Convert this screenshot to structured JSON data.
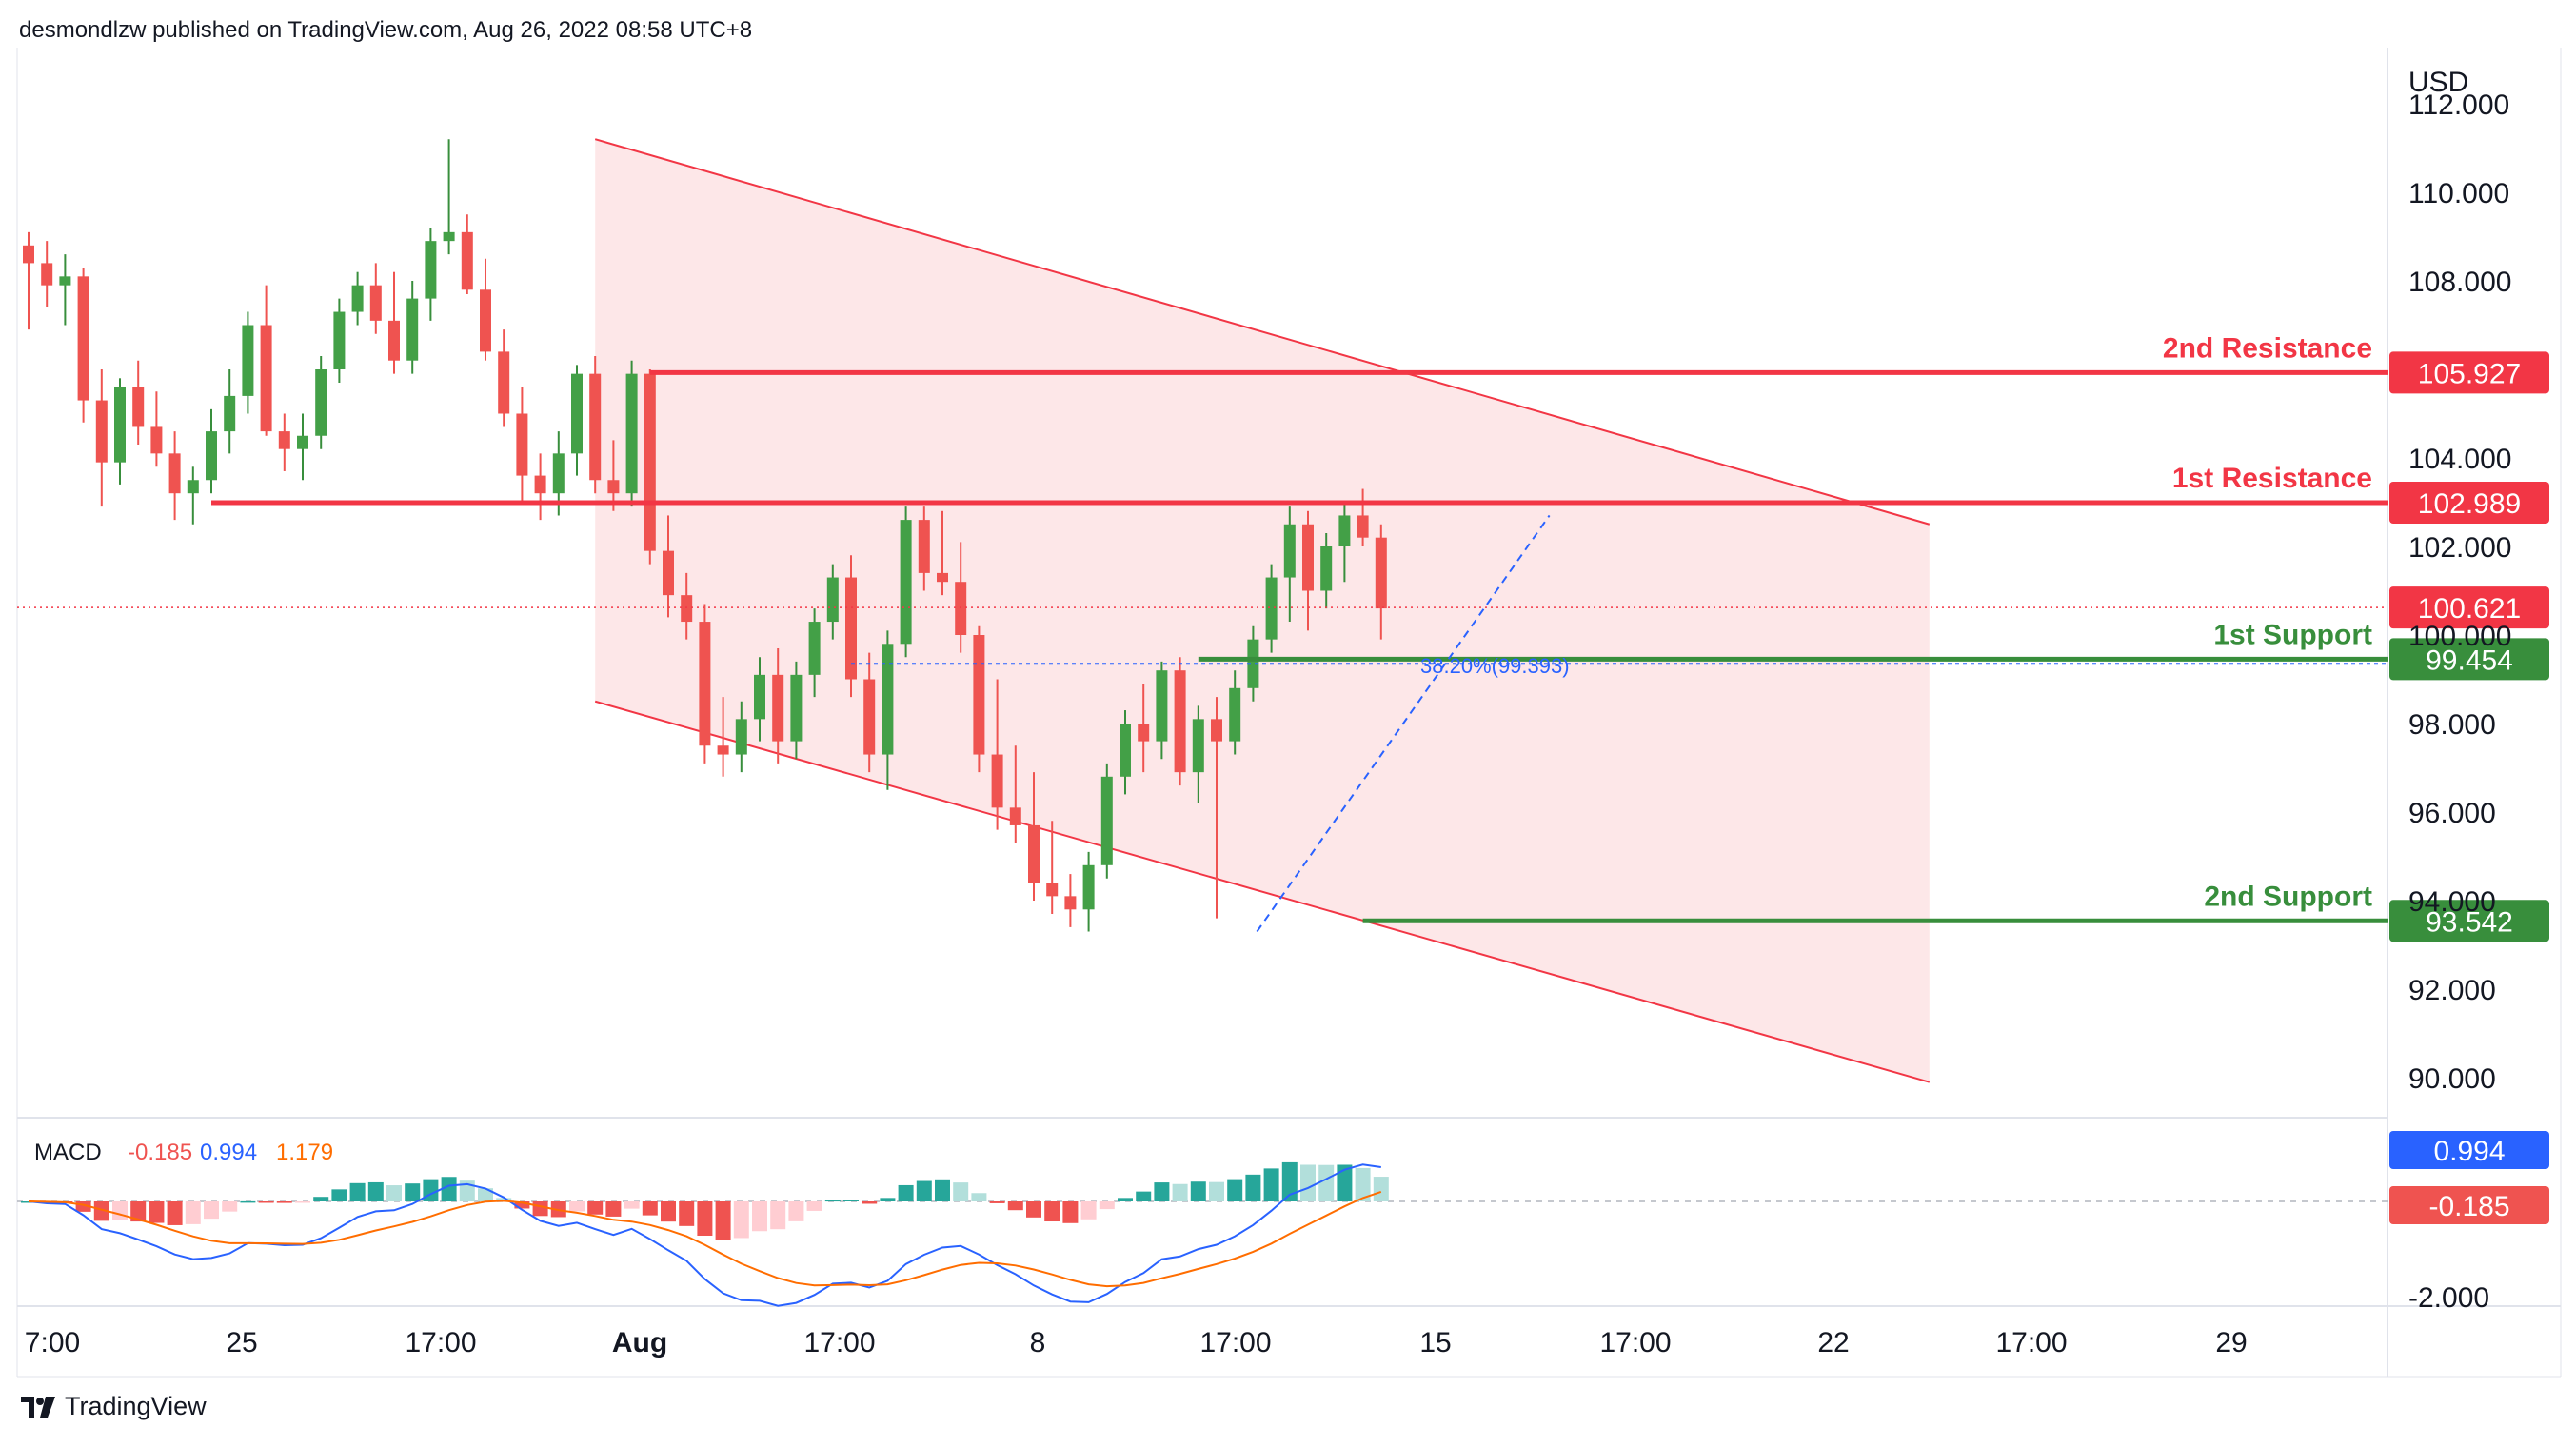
{
  "header": {
    "published": "desmondlzw published on TradingView.com, Aug 26, 2022 08:58 UTC+8"
  },
  "footer": {
    "brand": "TradingView",
    "logo_icon": "tradingview-logo-icon"
  },
  "price_axis": {
    "currency": "USD",
    "ticks": [
      "112.000",
      "110.000",
      "108.000",
      "104.000",
      "102.000",
      "100.000",
      "98.000",
      "96.000",
      "94.000",
      "92.000",
      "90.000"
    ]
  },
  "time_axis": {
    "labels": [
      "7:00",
      "25",
      "17:00",
      "Aug",
      "17:00",
      "8",
      "17:00",
      "15",
      "17:00",
      "22",
      "17:00",
      "29"
    ]
  },
  "levels": {
    "resistance_2": {
      "label": "2nd Resistance",
      "value": "105.927",
      "color": "#f23645"
    },
    "resistance_1": {
      "label": "1st Resistance",
      "value": "102.989",
      "color": "#f23645"
    },
    "support_1": {
      "label": "1st Support",
      "value": "99.454",
      "color": "#388e3c"
    },
    "support_2": {
      "label": "2nd Support",
      "value": "93.542",
      "color": "#388e3c"
    },
    "last_price": {
      "value": "100.621",
      "color": "#f23645"
    },
    "fib": {
      "label": "38.20%(99.393)"
    }
  },
  "macd": {
    "label": "MACD",
    "hist_value": "-0.185",
    "macd_value": "0.994",
    "signal_value": "1.179",
    "axis_tick": "-2.000",
    "colors": {
      "macd": "#2962ff",
      "signal": "#ff6d00",
      "hist_pos": "#26a69a",
      "hist_neg": "#ef5350"
    }
  },
  "chart_data": {
    "type": "candlestick",
    "symbol_currency": "USD",
    "ylim": [
      89,
      112.5
    ],
    "channel": {
      "upper": [
        [
          31,
          111.2
        ],
        [
          104,
          102.5
        ]
      ],
      "lower": [
        [
          31,
          98.5
        ],
        [
          104,
          89.9
        ]
      ]
    },
    "horizontal_levels": [
      {
        "name": "2nd Resistance",
        "value": 105.927,
        "from": 34
      },
      {
        "name": "1st Resistance",
        "value": 102.989,
        "from": 10
      },
      {
        "name": "1st Support",
        "value": 99.454,
        "from": 64
      },
      {
        "name": "2nd Support",
        "value": 93.542,
        "from": 73
      }
    ],
    "fib_level": {
      "label": "38.20%(99.393)",
      "value": 99.393
    },
    "candles": [
      [
        108.8,
        109.1,
        106.9,
        108.4
      ],
      [
        108.4,
        108.9,
        107.4,
        107.9
      ],
      [
        107.9,
        108.6,
        107.0,
        108.1
      ],
      [
        108.1,
        108.3,
        104.8,
        105.3
      ],
      [
        105.3,
        106.0,
        102.9,
        103.9
      ],
      [
        103.9,
        105.8,
        103.4,
        105.6
      ],
      [
        105.6,
        106.2,
        104.3,
        104.7
      ],
      [
        104.7,
        105.5,
        103.8,
        104.1
      ],
      [
        104.1,
        104.6,
        102.6,
        103.2
      ],
      [
        103.2,
        103.8,
        102.5,
        103.5
      ],
      [
        103.5,
        105.1,
        103.2,
        104.6
      ],
      [
        104.6,
        106.0,
        104.1,
        105.4
      ],
      [
        105.4,
        107.3,
        105.0,
        107.0
      ],
      [
        107.0,
        107.9,
        104.5,
        104.6
      ],
      [
        104.6,
        105.0,
        103.7,
        104.2
      ],
      [
        104.2,
        105.0,
        103.5,
        104.5
      ],
      [
        104.5,
        106.3,
        104.2,
        106.0
      ],
      [
        106.0,
        107.6,
        105.7,
        107.3
      ],
      [
        107.3,
        108.2,
        107.0,
        107.9
      ],
      [
        107.9,
        108.4,
        106.8,
        107.1
      ],
      [
        107.1,
        108.2,
        105.9,
        106.2
      ],
      [
        106.2,
        108.0,
        105.9,
        107.6
      ],
      [
        107.6,
        109.2,
        107.1,
        108.9
      ],
      [
        108.9,
        111.2,
        108.6,
        109.1
      ],
      [
        109.1,
        109.5,
        107.7,
        107.8
      ],
      [
        107.8,
        108.5,
        106.2,
        106.4
      ],
      [
        106.4,
        106.9,
        104.7,
        105.0
      ],
      [
        105.0,
        105.6,
        103.0,
        103.6
      ],
      [
        103.6,
        104.1,
        102.6,
        103.2
      ],
      [
        103.2,
        104.6,
        102.7,
        104.1
      ],
      [
        104.1,
        106.1,
        103.6,
        105.9
      ],
      [
        105.9,
        106.3,
        103.2,
        103.5
      ],
      [
        103.5,
        104.4,
        102.8,
        103.2
      ],
      [
        103.2,
        106.2,
        102.9,
        105.9
      ],
      [
        105.9,
        106.0,
        101.6,
        101.9
      ],
      [
        101.9,
        102.7,
        100.4,
        100.9
      ],
      [
        100.9,
        101.4,
        99.9,
        100.3
      ],
      [
        100.3,
        100.7,
        97.1,
        97.5
      ],
      [
        97.5,
        98.6,
        96.8,
        97.3
      ],
      [
        97.3,
        98.5,
        96.9,
        98.1
      ],
      [
        98.1,
        99.5,
        97.6,
        99.1
      ],
      [
        99.1,
        99.7,
        97.1,
        97.6
      ],
      [
        97.6,
        99.4,
        97.2,
        99.1
      ],
      [
        99.1,
        100.6,
        98.6,
        100.3
      ],
      [
        100.3,
        101.6,
        99.9,
        101.3
      ],
      [
        101.3,
        101.8,
        98.6,
        99.0
      ],
      [
        99.0,
        99.6,
        96.9,
        97.3
      ],
      [
        97.3,
        100.1,
        96.5,
        99.8
      ],
      [
        99.8,
        102.9,
        99.5,
        102.6
      ],
      [
        102.6,
        102.9,
        101.0,
        101.4
      ],
      [
        101.4,
        102.8,
        100.9,
        101.2
      ],
      [
        101.2,
        102.1,
        99.6,
        100.0
      ],
      [
        100.0,
        100.2,
        96.9,
        97.3
      ],
      [
        97.3,
        99.0,
        95.6,
        96.1
      ],
      [
        96.1,
        97.5,
        95.3,
        95.7
      ],
      [
        95.7,
        96.9,
        94.0,
        94.4
      ],
      [
        94.4,
        95.8,
        93.7,
        94.1
      ],
      [
        94.1,
        94.6,
        93.4,
        93.8
      ],
      [
        93.8,
        95.1,
        93.3,
        94.8
      ],
      [
        94.8,
        97.1,
        94.5,
        96.8
      ],
      [
        96.8,
        98.3,
        96.4,
        98.0
      ],
      [
        98.0,
        98.9,
        96.9,
        97.6
      ],
      [
        97.6,
        99.4,
        97.2,
        99.2
      ],
      [
        99.2,
        99.5,
        96.6,
        96.9
      ],
      [
        96.9,
        98.4,
        96.2,
        98.1
      ],
      [
        98.1,
        98.6,
        93.6,
        97.6
      ],
      [
        97.6,
        99.2,
        97.3,
        98.8
      ],
      [
        98.8,
        100.2,
        98.5,
        99.9
      ],
      [
        99.9,
        101.6,
        99.6,
        101.3
      ],
      [
        101.3,
        102.9,
        100.3,
        102.5
      ],
      [
        102.5,
        102.8,
        100.1,
        101.0
      ],
      [
        101.0,
        102.3,
        100.6,
        102.0
      ],
      [
        102.0,
        103.0,
        101.2,
        102.7
      ],
      [
        102.7,
        103.3,
        102.0,
        102.2
      ],
      [
        102.2,
        102.5,
        99.9,
        100.6
      ]
    ]
  }
}
